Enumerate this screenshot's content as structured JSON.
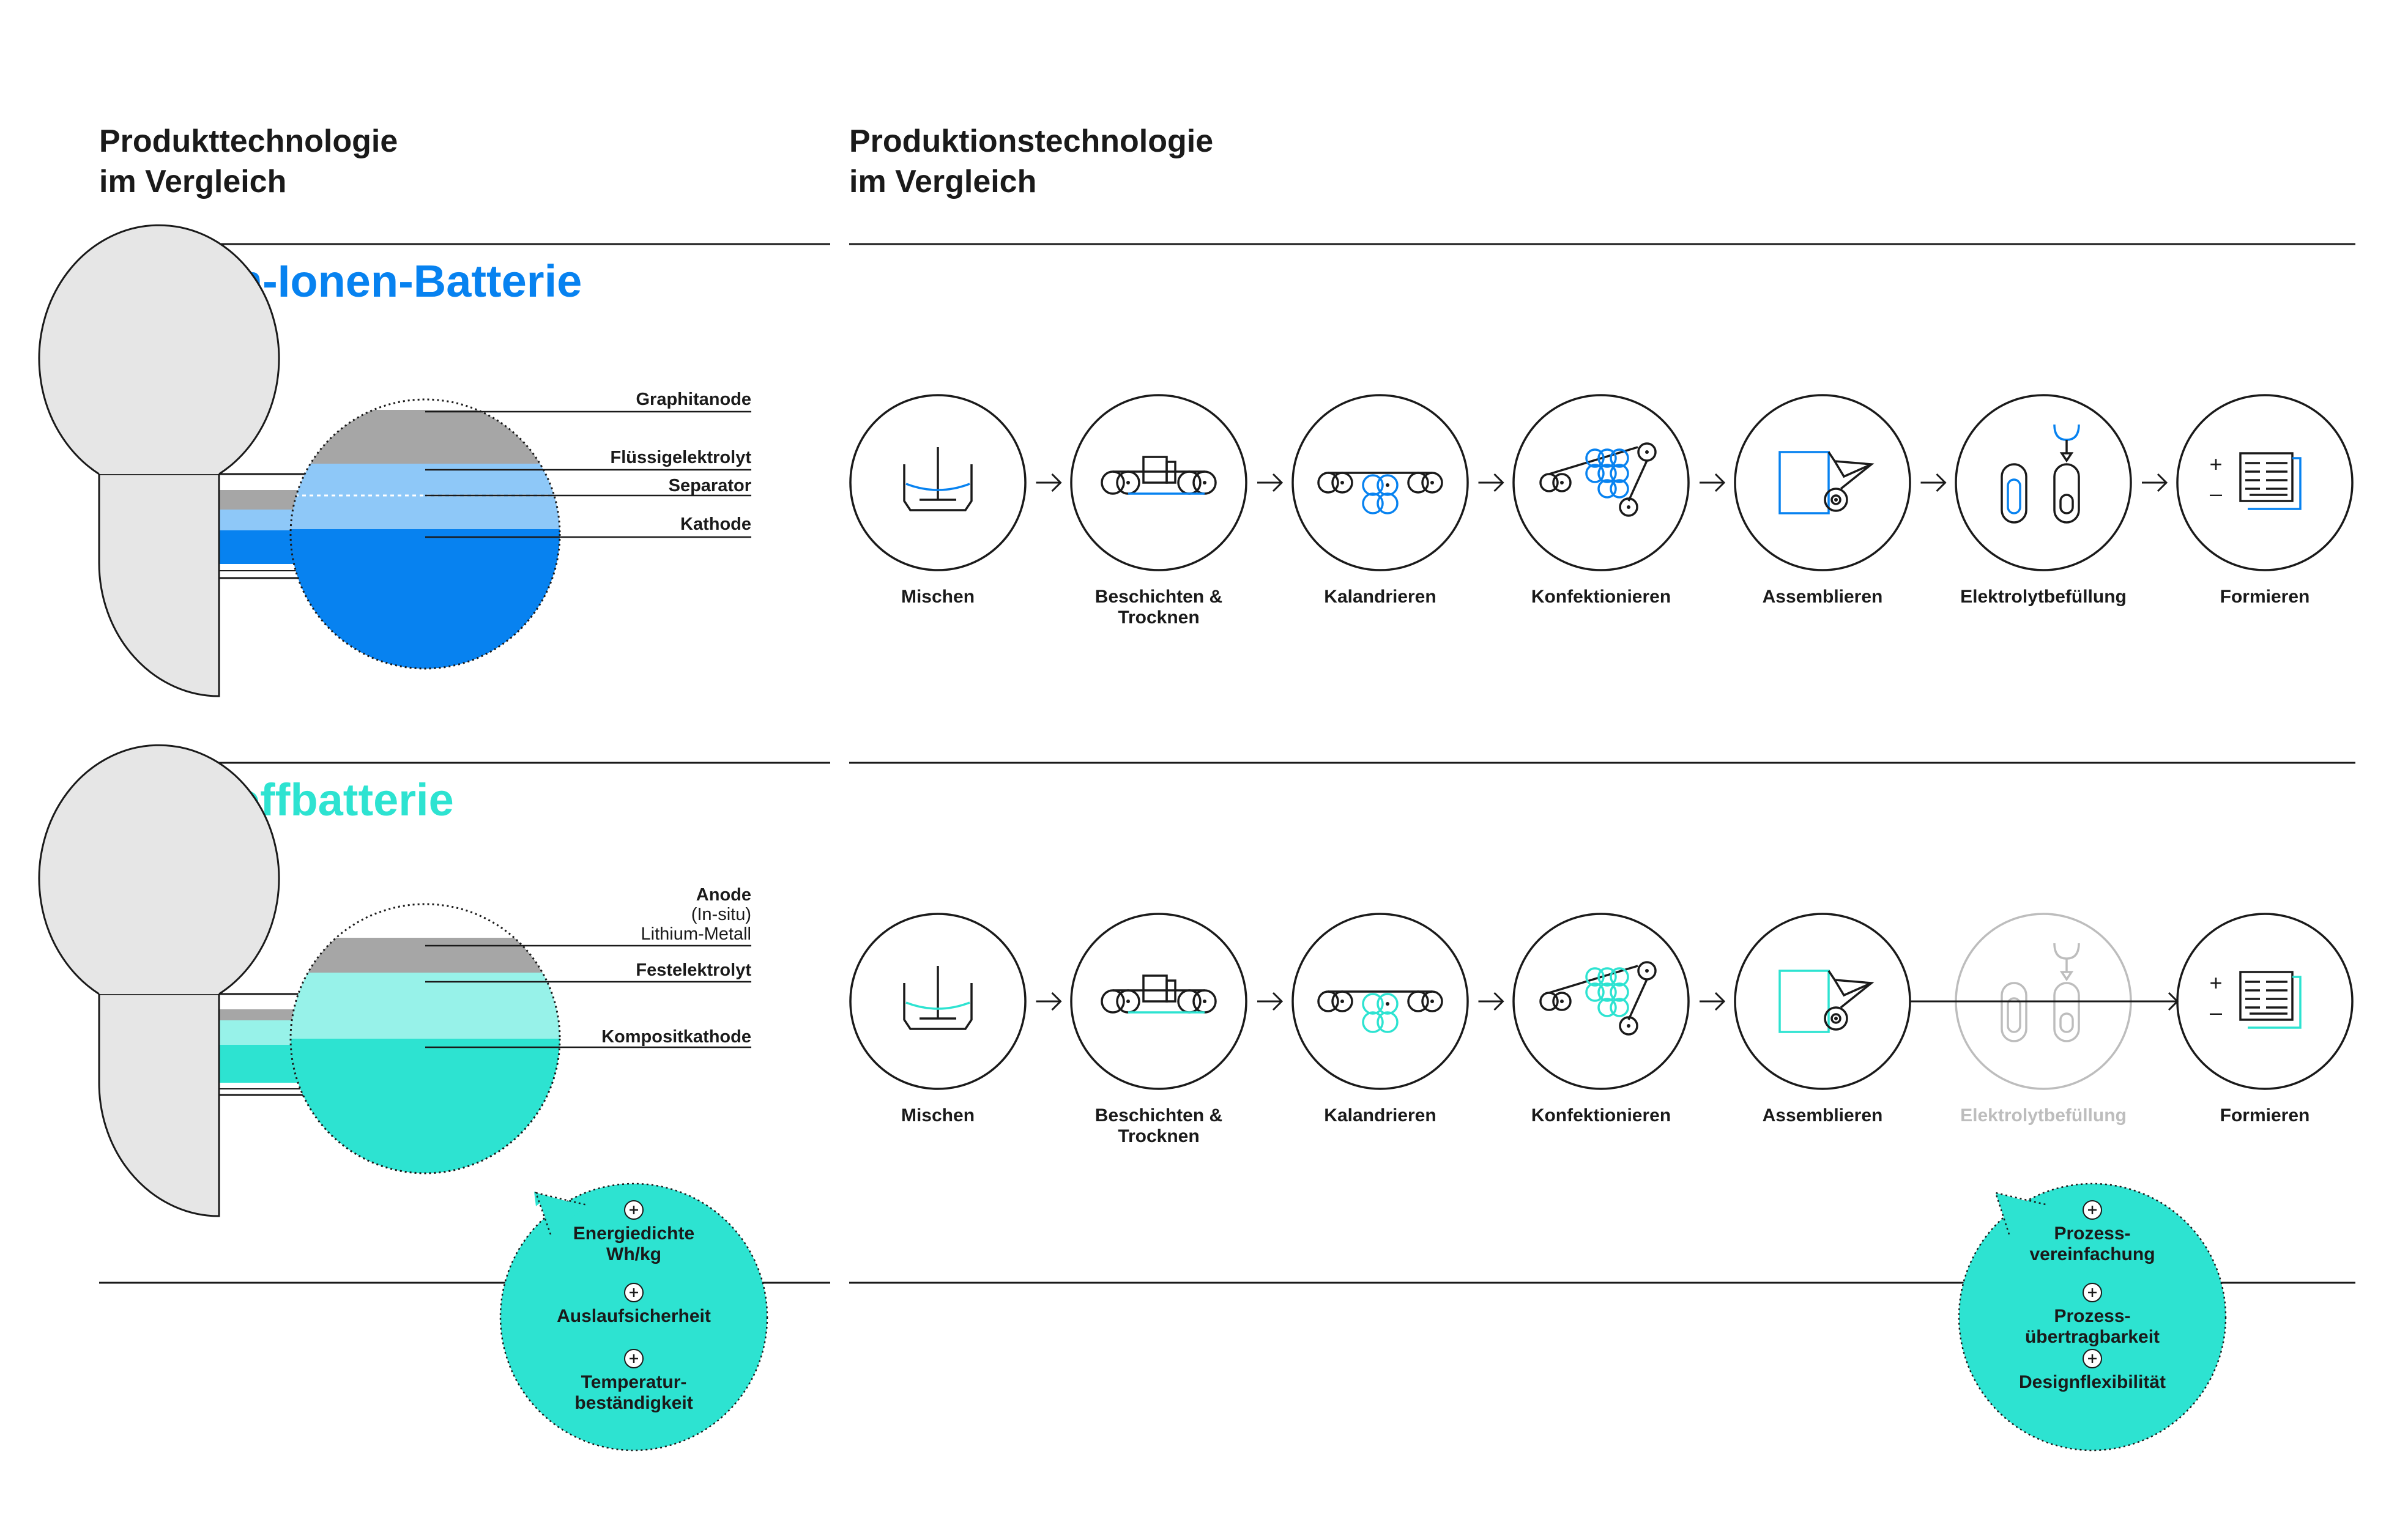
{
  "header": {
    "product_title_line1": "Produkttechnologie",
    "product_title_line2": "im Vergleich",
    "production_title_line1": "Produktionstechnologie",
    "production_title_line2": "im Vergleich"
  },
  "colors": {
    "blue": "#0782f0",
    "blue_light": "#8ec8f8",
    "teal": "#2de3d1",
    "teal_light": "#97f2e9",
    "gray_dark": "#a6a6a6",
    "gray_light": "#e6e6e6",
    "ink": "#1a1a1a",
    "muted": "#bdbdbd"
  },
  "liion": {
    "title": "Lithium-Ionen-Batterie",
    "layers": [
      "Graphitanode",
      "Flüssigelektrolyt",
      "Separator",
      "Kathode"
    ]
  },
  "solid": {
    "title": "Feststoffbatterie",
    "anode_lines": [
      "Anode",
      "(In-situ)",
      "Lithium-Metall"
    ],
    "layers": [
      "Festelektrolyt",
      "Kompositkathode"
    ]
  },
  "process_steps": [
    {
      "lines": [
        "Mischen"
      ],
      "icon": "mixer-icon"
    },
    {
      "lines": [
        "Beschichten &",
        "Trocknen"
      ],
      "icon": "coating-icon"
    },
    {
      "lines": [
        "Kalandrieren"
      ],
      "icon": "calender-icon"
    },
    {
      "lines": [
        "Konfektionieren"
      ],
      "icon": "slitting-icon"
    },
    {
      "lines": [
        "Assemblieren"
      ],
      "icon": "assembly-icon"
    },
    {
      "lines": [
        "Elektrolytbefüllung"
      ],
      "icon": "filling-icon"
    },
    {
      "lines": [
        "Formieren"
      ],
      "icon": "formation-icon"
    }
  ],
  "solid_skipped_step": "Elektrolytbefüllung",
  "product_benefits": [
    {
      "lines": [
        "Energiedichte",
        "Wh/kg"
      ]
    },
    {
      "lines": [
        "Auslaufsicherheit"
      ]
    },
    {
      "lines": [
        "Temperatur-",
        "beständigkeit"
      ]
    }
  ],
  "process_benefits": [
    {
      "lines": [
        "Prozess-",
        "vereinfachung"
      ]
    },
    {
      "lines": [
        "Prozess-",
        "übertragbarkeit"
      ]
    },
    {
      "lines": [
        "Designflexibilität"
      ]
    }
  ],
  "plus_symbol": "+",
  "formation_plus": "+",
  "formation_minus": "–"
}
